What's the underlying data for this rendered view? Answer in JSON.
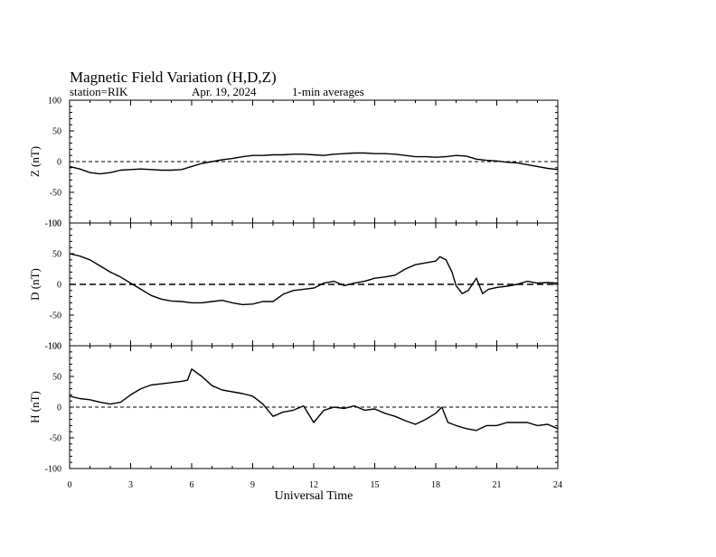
{
  "header": {
    "title": "Magnetic Field Variation (H,D,Z)",
    "station": "station=RIK",
    "date": "Apr. 19, 2024",
    "averaging": "1-min averages"
  },
  "chart_data": [
    {
      "type": "line",
      "panel": "Z",
      "ylabel": "Z (nT)",
      "ylim": [
        -100,
        100
      ],
      "yticks": [
        100,
        50,
        0,
        -50,
        -100
      ],
      "xlim": [
        0,
        24
      ],
      "baseline": 0,
      "baseline_style": "dashed",
      "series": [
        {
          "x": [
            0,
            0.5,
            1,
            1.5,
            2,
            2.5,
            3,
            3.5,
            4,
            4.5,
            5,
            5.5,
            6,
            6.5,
            7,
            7.5,
            8,
            8.5,
            9,
            9.5,
            10,
            10.5,
            11,
            11.5,
            12,
            12.5,
            13,
            13.5,
            14,
            14.5,
            15,
            15.5,
            16,
            16.5,
            17,
            17.5,
            18,
            18.5,
            19,
            19.5,
            20,
            20.5,
            21,
            21.5,
            22,
            22.5,
            23,
            23.5,
            24
          ],
          "y": [
            -8,
            -12,
            -18,
            -20,
            -18,
            -14,
            -13,
            -12,
            -13,
            -14,
            -14,
            -13,
            -8,
            -3,
            0,
            3,
            5,
            8,
            10,
            10,
            11,
            11,
            12,
            12,
            11,
            10,
            12,
            13,
            14,
            14,
            13,
            13,
            12,
            10,
            8,
            8,
            7,
            8,
            10,
            9,
            4,
            2,
            1,
            -1,
            -2,
            -5,
            -8,
            -11,
            -13
          ]
        }
      ]
    },
    {
      "type": "line",
      "panel": "D",
      "ylabel": "D (nT)",
      "ylim": [
        -100,
        100
      ],
      "yticks": [
        100,
        50,
        0,
        -50,
        -100
      ],
      "xlim": [
        0,
        24
      ],
      "baseline": 0,
      "baseline_style": "dashed",
      "series": [
        {
          "x": [
            0,
            0.5,
            1,
            1.5,
            2,
            2.5,
            3,
            3.5,
            4,
            4.5,
            5,
            5.5,
            6,
            6.5,
            7,
            7.5,
            8,
            8.5,
            9,
            9.5,
            10,
            10.5,
            11,
            11.5,
            12,
            12.5,
            13,
            13.5,
            14,
            14.5,
            15,
            15.5,
            16,
            16.5,
            17,
            17.5,
            18,
            18.2,
            18.5,
            18.8,
            19,
            19.3,
            19.6,
            20,
            20.3,
            20.6,
            21,
            21.5,
            22,
            22.5,
            23,
            23.5,
            24
          ],
          "y": [
            50,
            46,
            40,
            30,
            20,
            12,
            2,
            -8,
            -18,
            -24,
            -27,
            -28,
            -30,
            -30,
            -28,
            -26,
            -30,
            -33,
            -32,
            -28,
            -28,
            -16,
            -10,
            -8,
            -6,
            2,
            5,
            -2,
            2,
            5,
            10,
            12,
            15,
            25,
            32,
            35,
            38,
            45,
            40,
            20,
            -2,
            -15,
            -10,
            10,
            -15,
            -8,
            -5,
            -3,
            0,
            5,
            2,
            3,
            2
          ]
        }
      ]
    },
    {
      "type": "line",
      "panel": "H",
      "ylabel": "H (nT)",
      "ylim": [
        -100,
        100
      ],
      "yticks": [
        100,
        50,
        0,
        -50,
        -100
      ],
      "xlim": [
        0,
        24
      ],
      "xticks": [
        0,
        3,
        6,
        9,
        12,
        15,
        18,
        21,
        24
      ],
      "xlabel": "Universal Time",
      "baseline": 0,
      "baseline_style": "dashed",
      "series": [
        {
          "x": [
            0,
            0.5,
            1,
            1.5,
            2,
            2.5,
            3,
            3.5,
            4,
            4.5,
            5,
            5.5,
            5.8,
            6,
            6.5,
            7,
            7.5,
            8,
            8.5,
            9,
            9.5,
            10,
            10.5,
            11,
            11.5,
            12,
            12.5,
            13,
            13.5,
            14,
            14.5,
            15,
            15.5,
            16,
            16.5,
            17,
            17.5,
            18,
            18.3,
            18.6,
            19,
            19.5,
            20,
            20.5,
            21,
            21.5,
            22,
            22.5,
            23,
            23.5,
            24
          ],
          "y": [
            18,
            14,
            12,
            8,
            5,
            8,
            20,
            30,
            36,
            38,
            40,
            42,
            44,
            62,
            50,
            35,
            28,
            25,
            22,
            18,
            5,
            -15,
            -8,
            -5,
            2,
            -25,
            -5,
            0,
            -2,
            2,
            -5,
            -3,
            -10,
            -15,
            -22,
            -28,
            -20,
            -10,
            0,
            -25,
            -30,
            -35,
            -38,
            -30,
            -30,
            -25,
            -25,
            -25,
            -30,
            -28,
            -35
          ]
        }
      ]
    }
  ]
}
